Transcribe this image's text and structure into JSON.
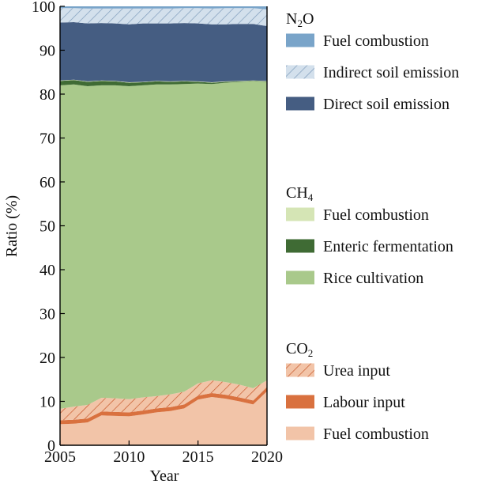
{
  "chart_data": {
    "type": "area",
    "stacked": true,
    "xlabel": "Year",
    "ylabel": "Ratio (%)",
    "xlim": [
      2005,
      2020
    ],
    "ylim": [
      0,
      100
    ],
    "xticks": [
      2005,
      2010,
      2015,
      2020
    ],
    "yticks": [
      0,
      10,
      20,
      30,
      40,
      50,
      60,
      70,
      80,
      90,
      100
    ],
    "grid": false,
    "legend_position": "right",
    "x": [
      2005,
      2006,
      2007,
      2008,
      2009,
      2010,
      2011,
      2012,
      2013,
      2014,
      2015,
      2016,
      2017,
      2018,
      2019,
      2020
    ],
    "legend_groups": [
      {
        "heading": "N",
        "heading_sub": "2",
        "heading_suffix": "O",
        "series_keys": [
          "n2o_fuel",
          "n2o_indirect",
          "n2o_direct"
        ]
      },
      {
        "heading": "CH",
        "heading_sub": "4",
        "heading_suffix": "",
        "series_keys": [
          "ch4_fuel",
          "ch4_enteric",
          "ch4_rice"
        ]
      },
      {
        "heading": "CO",
        "heading_sub": "2",
        "heading_suffix": "",
        "series_keys": [
          "co2_urea",
          "co2_labour",
          "co2_fuel"
        ]
      }
    ],
    "series": [
      {
        "key": "co2_fuel",
        "name": "Fuel combustion",
        "color": "#f2c4a8",
        "hatch": false,
        "values": [
          4.8,
          4.9,
          5.2,
          6.8,
          6.7,
          6.6,
          7.0,
          7.5,
          7.8,
          8.4,
          10.4,
          11.0,
          10.6,
          10.0,
          9.3,
          12.3
        ]
      },
      {
        "key": "co2_labour",
        "name": "Labour input",
        "color": "#d9713f",
        "hatch": false,
        "values": [
          0.9,
          0.9,
          0.9,
          0.9,
          0.9,
          0.9,
          0.9,
          0.9,
          0.9,
          0.9,
          0.9,
          0.9,
          0.9,
          0.9,
          0.9,
          0.9
        ]
      },
      {
        "key": "co2_urea",
        "name": "Urea input",
        "color": "#f2c4a8",
        "hatch": true,
        "hatch_color": "#c8582a",
        "values": [
          2.6,
          3.0,
          3.1,
          3.1,
          3.1,
          3.0,
          3.0,
          2.8,
          2.9,
          2.9,
          2.8,
          2.9,
          2.9,
          2.9,
          2.8,
          1.6
        ]
      },
      {
        "key": "ch4_rice",
        "name": "Rice cultivation",
        "color": "#a9c98b",
        "hatch": false,
        "values": [
          73.7,
          73.4,
          72.6,
          71.2,
          71.3,
          71.3,
          71.1,
          71.0,
          70.6,
          70.1,
          68.3,
          67.5,
          68.2,
          69.0,
          69.9,
          68.0
        ]
      },
      {
        "key": "ch4_enteric",
        "name": "Enteric fermentation",
        "color": "#3f6b34",
        "hatch": false,
        "values": [
          1.0,
          1.0,
          1.0,
          1.0,
          0.9,
          0.8,
          0.7,
          0.7,
          0.6,
          0.6,
          0.4,
          0.3,
          0.2,
          0.1,
          0.1,
          0.1
        ]
      },
      {
        "key": "ch4_fuel",
        "name": "Fuel combustion",
        "color": "#d5e5b5",
        "hatch": false,
        "values": [
          0.1,
          0.1,
          0.1,
          0.1,
          0.1,
          0.1,
          0.1,
          0.1,
          0.1,
          0.1,
          0.1,
          0.1,
          0.1,
          0.1,
          0.1,
          0.1
        ]
      },
      {
        "key": "n2o_direct",
        "name": "Direct soil emission",
        "color": "#455d82",
        "hatch": false,
        "values": [
          13.2,
          13.1,
          13.2,
          13.1,
          13.1,
          13.2,
          13.3,
          13.1,
          13.2,
          13.2,
          13.2,
          13.2,
          13.0,
          13.0,
          12.9,
          12.5
        ]
      },
      {
        "key": "n2o_indirect",
        "name": "Indirect soil emission",
        "color": "#d3e0ec",
        "hatch": true,
        "hatch_color": "#7f9cbc",
        "values": [
          3.3,
          3.2,
          3.4,
          3.3,
          3.4,
          3.6,
          3.4,
          3.4,
          3.4,
          3.4,
          3.5,
          3.6,
          3.7,
          3.6,
          3.6,
          3.8
        ]
      },
      {
        "key": "n2o_fuel",
        "name": "Fuel combustion",
        "color": "#79a4c9",
        "hatch": false,
        "values": [
          0.4,
          0.4,
          0.5,
          0.5,
          0.5,
          0.5,
          0.5,
          0.5,
          0.5,
          0.5,
          0.4,
          0.5,
          0.5,
          0.4,
          0.4,
          0.7
        ]
      }
    ]
  }
}
